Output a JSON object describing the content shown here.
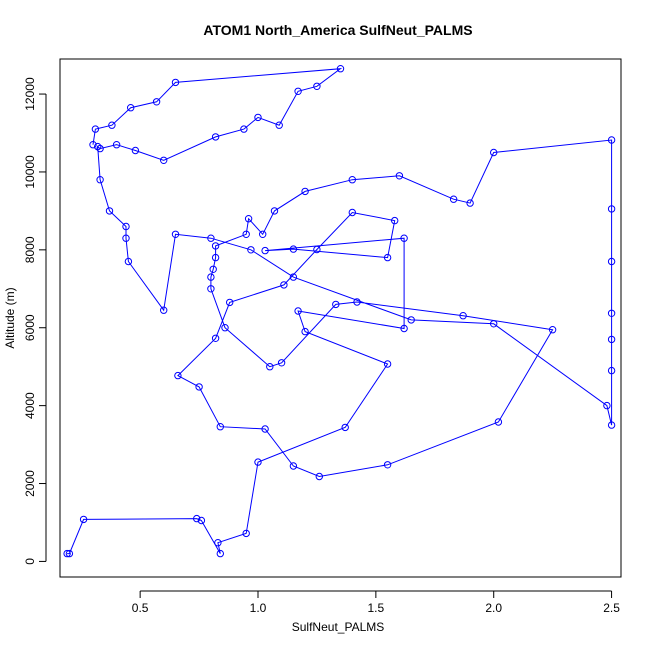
{
  "chart_data": {
    "type": "line",
    "title": "ATOM1 North_America SulfNeut_PALMS",
    "xlabel": "SulfNeut_PALMS",
    "ylabel": "Altitude (m)",
    "xlim": [
      0.16,
      2.54
    ],
    "ylim": [
      -400,
      12900
    ],
    "xticks": [
      0.5,
      1.0,
      1.5,
      2.0,
      2.5
    ],
    "xtick_labels": [
      "0.5",
      "1.0",
      "1.5",
      "2.0",
      "2.5"
    ],
    "yticks": [
      0,
      2000,
      4000,
      6000,
      8000,
      10000,
      12000
    ],
    "ytick_labels": [
      "0",
      "2000",
      "4000",
      "6000",
      "8000",
      "10000",
      "12000"
    ],
    "grid": false,
    "series_color": "#0000ff",
    "series": [
      {
        "x": [
          0.19,
          0.2,
          0.26,
          0.74,
          0.76,
          0.84,
          0.83,
          0.95,
          1.0,
          1.37,
          1.55,
          1.2,
          1.17,
          1.62,
          1.62,
          1.03,
          1.15,
          1.55,
          1.58,
          1.4,
          1.25,
          1.11,
          0.88,
          0.82,
          0.66,
          0.75,
          0.84,
          1.03,
          1.15,
          1.26,
          1.55,
          2.02,
          2.25,
          1.87,
          1.42,
          1.33,
          1.1,
          1.05,
          0.86,
          0.8,
          0.8,
          0.81,
          0.82,
          0.82,
          0.95,
          0.96,
          1.02,
          1.07,
          1.2,
          1.4,
          1.6,
          1.83,
          1.9,
          2.0,
          2.5,
          2.5,
          2.5,
          2.5,
          2.5,
          2.5,
          2.5,
          2.48,
          2.0,
          1.65,
          1.15,
          0.97,
          0.8,
          0.65,
          0.6,
          0.45,
          0.44,
          0.44,
          0.37,
          0.33,
          0.32,
          0.33,
          0.4,
          0.48,
          0.6,
          0.82,
          0.94,
          1.0,
          1.09,
          1.17,
          1.25,
          1.35,
          0.65,
          0.57,
          0.46,
          0.38,
          0.31,
          0.3
        ],
        "y": [
          200,
          200,
          1080,
          1100,
          1050,
          200,
          480,
          720,
          2550,
          3440,
          5070,
          5900,
          6430,
          5980,
          8300,
          7980,
          8020,
          7800,
          8750,
          8960,
          8010,
          7100,
          6650,
          5730,
          4770,
          4480,
          3460,
          3400,
          2450,
          2180,
          2480,
          3580,
          5950,
          6310,
          6660,
          6600,
          5100,
          5000,
          6000,
          7000,
          7300,
          7500,
          7800,
          8100,
          8400,
          8800,
          8400,
          9000,
          9500,
          9800,
          9900,
          9300,
          9200,
          10500,
          10820,
          9050,
          7700,
          6370,
          5700,
          4900,
          3500,
          4000,
          6100,
          6200,
          7300,
          8000,
          8300,
          8400,
          6450,
          7700,
          8300,
          8600,
          9000,
          9800,
          10650,
          10600,
          10700,
          10550,
          10300,
          10900,
          11100,
          11400,
          11200,
          12070,
          12200,
          12650,
          12300,
          11800,
          11650,
          11200,
          11100,
          10700
        ]
      }
    ]
  }
}
